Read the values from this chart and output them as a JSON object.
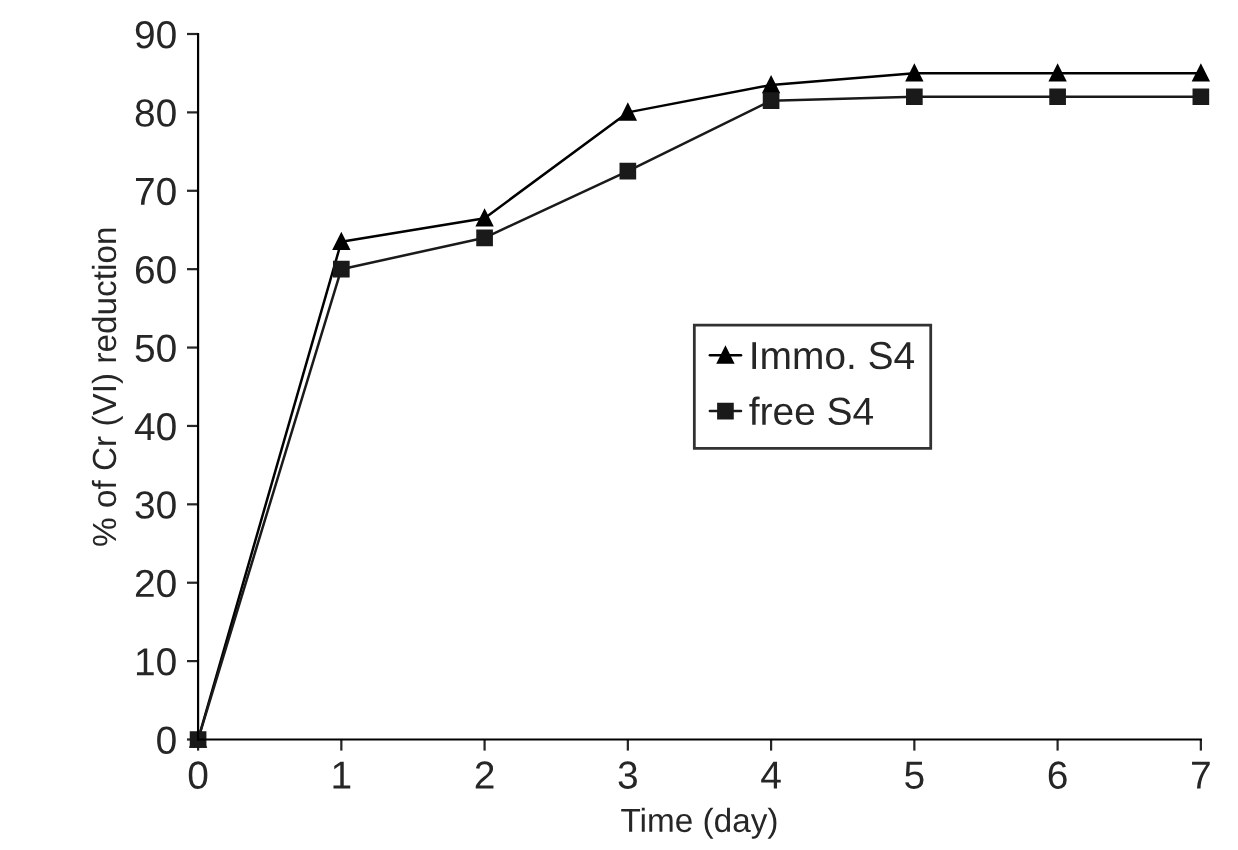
{
  "chart_data": {
    "type": "line",
    "xlabel": "Time (day)",
    "ylabel": "% of Cr (VI) reduction",
    "x": [
      0,
      1,
      2,
      3,
      4,
      5,
      6,
      7
    ],
    "series": [
      {
        "name": "Immo. S4",
        "color": "#000000",
        "marker": "triangle",
        "values": [
          0,
          63.5,
          66.5,
          80,
          83.5,
          85,
          85,
          85
        ]
      },
      {
        "name": "free S4",
        "color": "#1a1a1a",
        "marker": "square",
        "values": [
          0,
          60,
          64,
          72.5,
          81.5,
          82,
          82,
          82
        ]
      }
    ],
    "xlim": [
      0,
      7
    ],
    "ylim": [
      0,
      90
    ],
    "xticks": [
      0,
      1,
      2,
      3,
      4,
      5,
      6,
      7
    ],
    "yticks": [
      0,
      10,
      20,
      30,
      40,
      50,
      60,
      70,
      80,
      90
    ],
    "grid": false,
    "legend": "center right",
    "line_style": "solid"
  }
}
